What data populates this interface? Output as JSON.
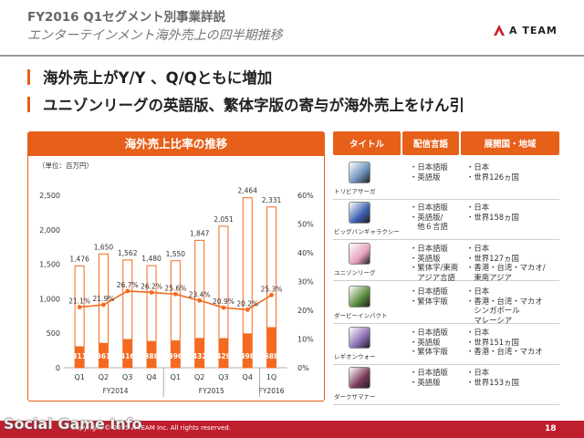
{
  "header": {
    "title": "FY2016 Q1セグメント別事業詳説",
    "subtitle": "エンターテインメント海外売上の四半期推移",
    "logo_text": "A TEAM"
  },
  "bullets": [
    "海外売上がY/Y 、Q/Qともに増加",
    "ユニゾンリーグの英語版、繁体字版の寄与が海外売上をけん引"
  ],
  "chart": {
    "header": "海外売上比率の推移",
    "unit_label": "（単位：百万円）"
  },
  "chart_data": {
    "type": "bar",
    "categories": [
      "Q1",
      "Q2",
      "Q3",
      "Q4",
      "Q1",
      "Q2",
      "Q3",
      "Q4",
      "1Q"
    ],
    "category_groups": [
      {
        "label": "FY2014",
        "span": 4
      },
      {
        "label": "FY2015",
        "span": 4
      },
      {
        "label": "FY2016",
        "span": 1
      }
    ],
    "series": [
      {
        "values": [
          1476,
          1650,
          1562,
          1480,
          1550,
          1847,
          2051,
          2464,
          2331
        ],
        "labels": [
          "1,476",
          "1,650",
          "1,562",
          "1,480",
          "1,550",
          "1,847",
          "2,051",
          "2,464",
          "2,331"
        ]
      },
      {
        "values": [
          311,
          361,
          416,
          388,
          396,
          432,
          429,
          498,
          588
        ],
        "labels": [
          "311",
          "361",
          "416",
          "388",
          "396",
          "432",
          "429",
          "498",
          "588"
        ]
      },
      {
        "axis": "right",
        "values": [
          21.1,
          21.9,
          26.7,
          26.2,
          25.6,
          23.4,
          20.9,
          20.2,
          25.3
        ],
        "labels": [
          "21.1%",
          "21.9%",
          "26.7%",
          "26.2%",
          "25.6%",
          "23.4%",
          "20.9%",
          "20.2%",
          "25.3%"
        ]
      }
    ],
    "ylim": [
      0,
      2500
    ],
    "y_ticks": [
      "0",
      "500",
      "1,000",
      "1,500",
      "2,000",
      "2,500"
    ],
    "y2lim": [
      0,
      60
    ],
    "y2_ticks": [
      "0%",
      "10%",
      "20%",
      "30%",
      "40%",
      "50%",
      "60%"
    ],
    "colors": {
      "total": "#ffffff",
      "overseas": "#f26b21",
      "ratio": "#f26b21",
      "border": "#f26b21"
    }
  },
  "table": {
    "headers": [
      "タイトル",
      "配信言語",
      "展開国・地域"
    ],
    "rows": [
      {
        "name": "トリビアサーガ",
        "icon": "trivia-saga-icon",
        "color": "#6a8fb8",
        "languages": [
          "・日本語版",
          "・英語版"
        ],
        "regions": [
          "・日本",
          "・世界126ヵ国"
        ]
      },
      {
        "name": "ビッグバンギャラクシー",
        "icon": "big-bang-galaxy-icon",
        "color": "#3a5fb0",
        "languages": [
          "・日本語版",
          "・英語版/",
          "　他６言語"
        ],
        "regions": [
          "・日本",
          "・世界158ヵ国"
        ]
      },
      {
        "name": "ユニゾンリーグ",
        "icon": "unison-league-icon",
        "color": "#e8a0c0",
        "languages": [
          "・日本語版",
          "・英語版",
          "・繁体字/東南",
          "　アジア言語"
        ],
        "regions": [
          "・日本",
          "・世界127ヵ国",
          "・香港・台湾・マカオ/",
          "　東南アジア"
        ]
      },
      {
        "name": "ダービーインパクト",
        "icon": "derby-impact-icon",
        "color": "#5a8a3a",
        "languages": [
          "・日本語版",
          "・繁体字版"
        ],
        "regions": [
          "・日本",
          "・香港・台湾・マカオ",
          "　シンガポール",
          "　マレーシア"
        ]
      },
      {
        "name": "レギオンウォー",
        "icon": "legion-war-icon",
        "color": "#8a6ab0",
        "languages": [
          "・日本語版",
          "・英語版",
          "・繁体字版"
        ],
        "regions": [
          "・日本",
          "・世界151ヵ国",
          "・香港・台湾・マカオ"
        ]
      },
      {
        "name": "ダークサマナー",
        "icon": "dark-summoner-icon",
        "color": "#7a3a5a",
        "languages": [
          "・日本語版",
          "・英語版"
        ],
        "regions": [
          "・日本",
          "・世界153ヵ国"
        ]
      }
    ]
  },
  "footer": {
    "copyright": "Copyright © 2015 A-TEAM Inc. All rights reserved.",
    "page_number": "18",
    "watermark": "Social Game Info"
  }
}
